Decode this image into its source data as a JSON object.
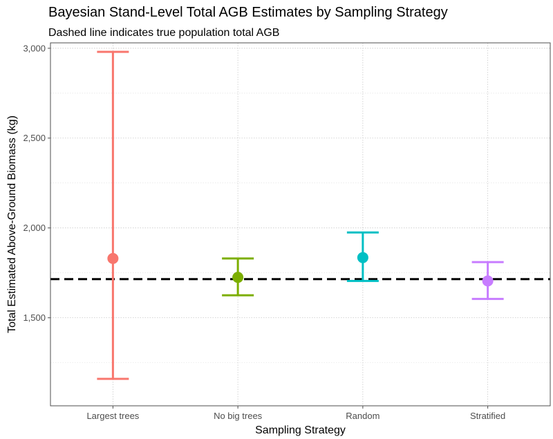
{
  "chart_data": {
    "type": "errorbar",
    "title": "Bayesian Stand-Level Total AGB Estimates by Sampling Strategy",
    "subtitle": "Dashed line indicates true population total AGB",
    "xlabel": "Sampling Strategy",
    "ylabel": "Total Estimated Above-Ground Biomass (kg)",
    "ylim": [
      1010,
      3030
    ],
    "y_ticks": [
      1500,
      2000,
      2500,
      3000
    ],
    "y_tick_labels": [
      "1,500",
      "2,000",
      "2,500",
      "3,000"
    ],
    "y_minor_ticks": [
      1250,
      1750,
      2250,
      2750
    ],
    "grid": true,
    "categories": [
      "Largest trees",
      "No big trees",
      "Random",
      "Stratified"
    ],
    "points": [
      {
        "category": "Largest trees",
        "estimate": 1830,
        "lower": 1160,
        "upper": 2980,
        "color": "#F8766D"
      },
      {
        "category": "No big trees",
        "estimate": 1725,
        "lower": 1625,
        "upper": 1830,
        "color": "#7CAE00"
      },
      {
        "category": "Random",
        "estimate": 1835,
        "lower": 1705,
        "upper": 1975,
        "color": "#00BFC4"
      },
      {
        "category": "Stratified",
        "estimate": 1705,
        "lower": 1605,
        "upper": 1810,
        "color": "#C77CFF"
      }
    ],
    "reference_line": {
      "value": 1715,
      "color": "#000000",
      "style": "dashed"
    }
  }
}
